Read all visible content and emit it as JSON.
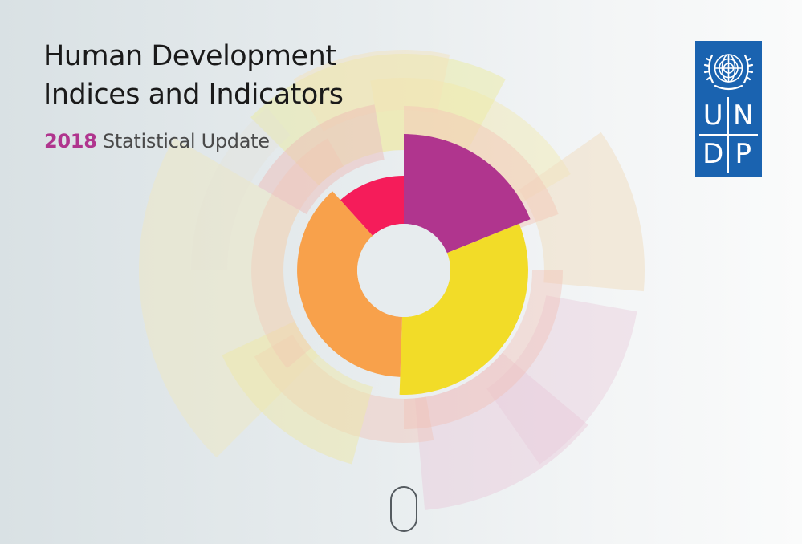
{
  "header": {
    "title_line1": "Human Development",
    "title_line2": "Indices and Indicators",
    "subtitle_year": "2018",
    "subtitle_rest": "Statistical Update"
  },
  "logo": {
    "letters": [
      "U",
      "N",
      "D",
      "P"
    ],
    "color": "#1a63b0"
  },
  "graphic": {
    "icon": "sunburst-graphic",
    "inner_colors": [
      "#b0358e",
      "#f2dc28",
      "#f8a14b",
      "#f51c5a"
    ]
  },
  "scroll_hint": {
    "icon": "mouse-scroll-icon"
  }
}
